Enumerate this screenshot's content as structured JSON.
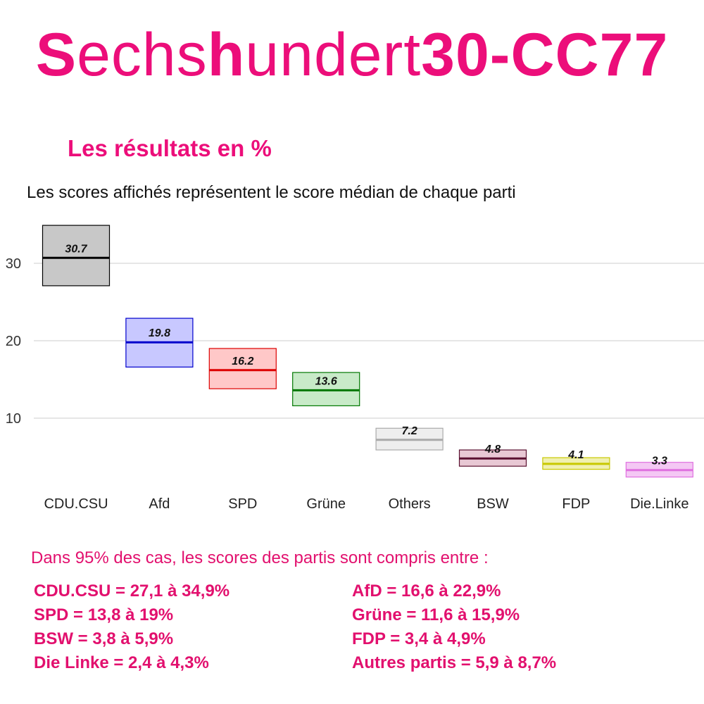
{
  "brand": {
    "part1": "S",
    "part2": "echs",
    "part3": "h",
    "part4": "undert",
    "part5": "30-CC77"
  },
  "heading": "Les résultats en %",
  "subtitle": "Les scores affichés représentent le score médian de chaque parti",
  "chart_data": {
    "type": "box",
    "categories": [
      "CDU.CSU",
      "Afd",
      "SPD",
      "Grüne",
      "Others",
      "BSW",
      "FDP",
      "Die.Linke"
    ],
    "medians": [
      30.7,
      19.8,
      16.2,
      13.6,
      7.2,
      4.8,
      4.1,
      3.3
    ],
    "ranges": [
      [
        27.1,
        34.9
      ],
      [
        16.6,
        22.9
      ],
      [
        13.8,
        19.0
      ],
      [
        11.6,
        15.9
      ],
      [
        5.9,
        8.7
      ],
      [
        3.8,
        5.9
      ],
      [
        3.4,
        4.9
      ],
      [
        2.4,
        4.3
      ]
    ],
    "median_labels": [
      "30.7",
      "19.8",
      "16.2",
      "13.6",
      "7.2",
      "4.8",
      "4.1",
      "3.3"
    ],
    "colors": {
      "fill": [
        "#c8c8c8",
        "#c8c8ff",
        "#ffc8c8",
        "#c8eac8",
        "#eeeeee",
        "#e8c8d4",
        "#f0f0b0",
        "#f4c8f4"
      ],
      "stroke": [
        "#000000",
        "#0000cc",
        "#dd0000",
        "#007700",
        "#aaaaaa",
        "#5a1030",
        "#c8c800",
        "#e070e0"
      ]
    },
    "yticks": [
      10,
      20,
      30
    ],
    "ytick_labels": [
      "10",
      "20",
      "30"
    ],
    "ylim": [
      1.5,
      36
    ],
    "grid": true,
    "xlabel": "",
    "ylabel": ""
  },
  "ci": {
    "intro": "Dans 95% des cas, les scores des partis sont compris entre :",
    "items": [
      "CDU.CSU = 27,1 à 34,9%",
      "AfD = 16,6 à 22,9%",
      "SPD = 13,8 à 19%",
      "Grüne = 11,6 à 15,9%",
      "BSW = 3,8 à 5,9%",
      "FDP = 3,4 à 4,9%",
      "Die Linke = 2,4 à 4,3%",
      "Autres partis = 5,9 à 8,7%"
    ]
  }
}
